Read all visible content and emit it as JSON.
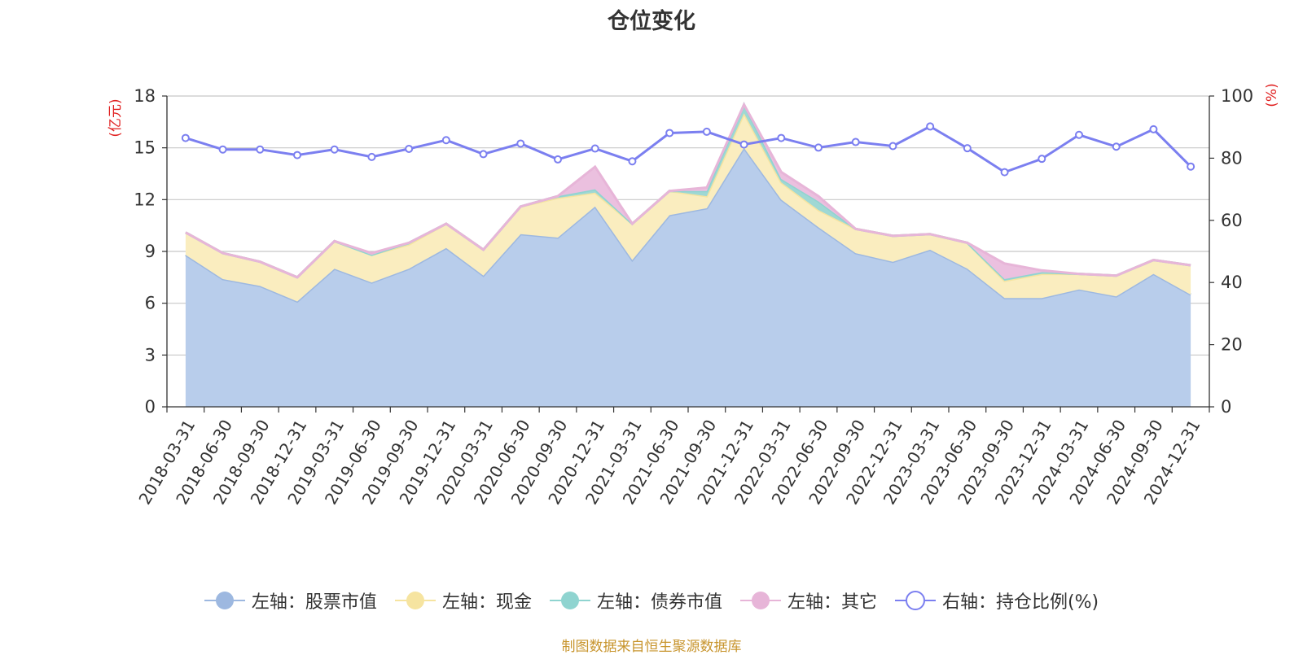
{
  "chart_data": {
    "type": "area",
    "title": "仓位变化",
    "x": [
      "2018-03-31",
      "2018-06-30",
      "2018-09-30",
      "2018-12-31",
      "2019-03-31",
      "2019-06-30",
      "2019-09-30",
      "2019-12-31",
      "2020-03-31",
      "2020-06-30",
      "2020-09-30",
      "2020-12-31",
      "2021-03-31",
      "2021-06-30",
      "2021-09-30",
      "2021-12-31",
      "2022-03-31",
      "2022-06-30",
      "2022-09-30",
      "2022-12-31",
      "2023-03-31",
      "2023-06-30",
      "2023-09-30",
      "2023-12-31",
      "2024-03-31",
      "2024-06-30",
      "2024-09-30",
      "2024-12-31"
    ],
    "y_left_label": "(亿元)",
    "y_right_label": "(%)",
    "y_left_ticks": [
      "0",
      "3",
      "6",
      "9",
      "12",
      "15",
      "18"
    ],
    "y_right_ticks": [
      "0",
      "20",
      "40",
      "60",
      "80",
      "100"
    ],
    "ylim_left": [
      0,
      18
    ],
    "ylim_right": [
      0,
      100
    ],
    "series": [
      {
        "name": "左轴：股票市值",
        "axis": "left",
        "stacked": true,
        "color": "#9db8e0",
        "fill": "#b8cdeb",
        "values": [
          8.8,
          7.4,
          7.0,
          6.1,
          8.0,
          7.2,
          8.0,
          9.2,
          7.6,
          10.0,
          9.8,
          11.6,
          8.5,
          11.1,
          11.5,
          15.0,
          12.0,
          10.4,
          8.9,
          8.4,
          9.1,
          8.0,
          6.3,
          6.3,
          6.8,
          6.4,
          7.7,
          6.5
        ]
      },
      {
        "name": "左轴：现金",
        "axis": "left",
        "stacked": true,
        "color": "#f6e4a0",
        "fill": "#faedbf",
        "values": [
          1.3,
          1.5,
          1.4,
          1.4,
          1.6,
          1.6,
          1.4,
          1.4,
          1.5,
          1.6,
          2.3,
          0.8,
          2.1,
          1.4,
          0.7,
          2.0,
          1.0,
          1.0,
          1.4,
          1.5,
          0.9,
          1.5,
          1.0,
          1.4,
          0.9,
          1.2,
          0.8,
          1.7
        ]
      },
      {
        "name": "左轴：债券市值",
        "axis": "left",
        "stacked": true,
        "color": "#8fd4d0",
        "fill": "#9fd8d4",
        "values": [
          0,
          0,
          0,
          0,
          0,
          0,
          0.1,
          0,
          0,
          0,
          0.1,
          0.2,
          0,
          0,
          0.3,
          0.5,
          0.2,
          0.5,
          0,
          0,
          0,
          0,
          0.1,
          0.1,
          0,
          0,
          0,
          0
        ]
      },
      {
        "name": "左轴：其它",
        "axis": "left",
        "stacked": true,
        "color": "#e7b5d8",
        "fill": "#ebc0df",
        "values": [
          0,
          0,
          0,
          0,
          0,
          0.1,
          0,
          0,
          0,
          0,
          0,
          1.3,
          0,
          0,
          0.2,
          0,
          0.4,
          0.3,
          0,
          0,
          0,
          0,
          0.9,
          0.1,
          0,
          0,
          0,
          0
        ]
      },
      {
        "name": "右轴：持仓比例(%)",
        "axis": "right",
        "stacked": false,
        "color": "#7b7ff0",
        "values": [
          86.5,
          82.8,
          82.8,
          81.0,
          82.8,
          80.4,
          83.0,
          85.8,
          81.3,
          84.7,
          79.6,
          83.1,
          79.0,
          88.1,
          88.5,
          84.4,
          86.5,
          83.4,
          85.2,
          83.9,
          90.2,
          83.2,
          75.5,
          79.8,
          87.5,
          83.7,
          89.3,
          77.3
        ]
      }
    ],
    "grid": true,
    "legend": "bottom-center",
    "source": "制图数据来自恒生聚源数据库"
  }
}
